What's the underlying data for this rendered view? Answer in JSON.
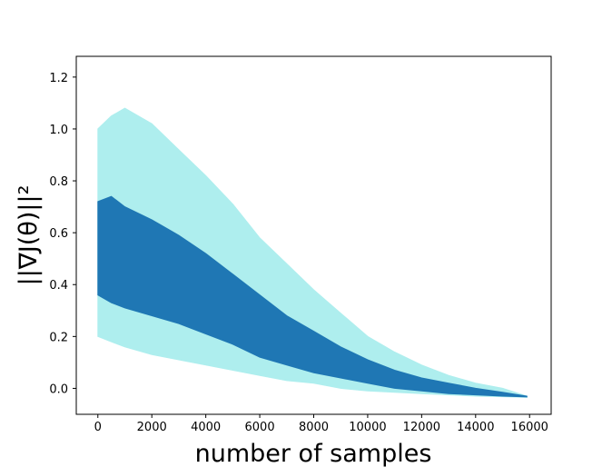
{
  "chart_data": {
    "type": "area",
    "title": "",
    "xlabel": "number of samples",
    "ylabel": "||∇J(θ)||²",
    "xlim": [
      -800,
      16800
    ],
    "ylim": [
      -0.1,
      1.28
    ],
    "xticks": [
      0,
      2000,
      4000,
      6000,
      8000,
      10000,
      12000,
      14000,
      16000
    ],
    "xtick_labels": [
      "0",
      "2000",
      "4000",
      "6000",
      "8000",
      "10000",
      "12000",
      "14000",
      "16000"
    ],
    "yticks": [
      0.0,
      0.2,
      0.4,
      0.6,
      0.8,
      1.0,
      1.2
    ],
    "ytick_labels": [
      "0.0",
      "0.2",
      "0.4",
      "0.6",
      "0.8",
      "1.0",
      "1.2"
    ],
    "grid": false,
    "legend": "none",
    "series": [
      {
        "role": "outer-band",
        "color": "#aeeeee",
        "x": [
          0,
          500,
          1000,
          2000,
          3000,
          4000,
          5000,
          6000,
          7000,
          8000,
          9000,
          10000,
          11000,
          12000,
          13000,
          14000,
          15000,
          15900
        ],
        "lower": [
          0.2,
          0.18,
          0.16,
          0.13,
          0.11,
          0.09,
          0.07,
          0.05,
          0.03,
          0.02,
          0.0,
          -0.01,
          -0.015,
          -0.02,
          -0.025,
          -0.03,
          -0.032,
          -0.035
        ],
        "upper": [
          1.0,
          1.05,
          1.08,
          1.02,
          0.92,
          0.82,
          0.71,
          0.58,
          0.48,
          0.38,
          0.29,
          0.2,
          0.14,
          0.09,
          0.05,
          0.02,
          0.0,
          -0.03
        ]
      },
      {
        "role": "inner-band",
        "color": "#1f77b4",
        "x": [
          0,
          500,
          1000,
          2000,
          3000,
          4000,
          5000,
          6000,
          7000,
          8000,
          9000,
          10000,
          11000,
          12000,
          13000,
          14000,
          15000,
          15900
        ],
        "lower": [
          0.36,
          0.33,
          0.31,
          0.28,
          0.25,
          0.21,
          0.17,
          0.12,
          0.09,
          0.06,
          0.04,
          0.02,
          0.0,
          -0.01,
          -0.02,
          -0.025,
          -0.03,
          -0.033
        ],
        "upper": [
          0.72,
          0.74,
          0.7,
          0.65,
          0.59,
          0.52,
          0.44,
          0.36,
          0.28,
          0.22,
          0.16,
          0.11,
          0.07,
          0.04,
          0.02,
          0.0,
          -0.015,
          -0.03
        ]
      }
    ]
  }
}
